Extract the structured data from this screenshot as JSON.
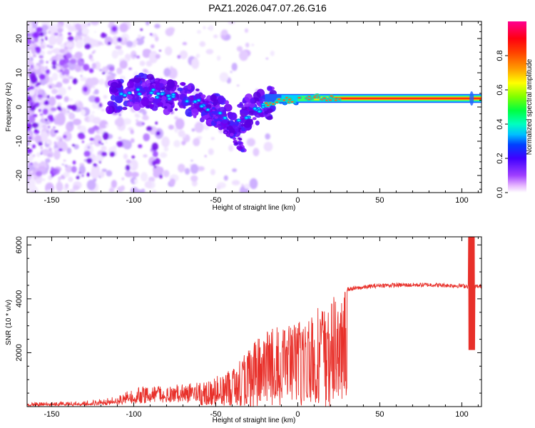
{
  "title": "PAZ1.2026.047.07.26.G16",
  "chart_data": [
    {
      "type": "heatmap",
      "name": "spectrogram",
      "xlabel": "Height of straight line (km)",
      "ylabel": "Frequency (Hz)",
      "xlim": [
        -165,
        112
      ],
      "ylim": [
        -25,
        25
      ],
      "xticks": [
        -150,
        -100,
        -50,
        0,
        50,
        100
      ],
      "yticks": [
        -20,
        -10,
        0,
        10,
        20
      ],
      "colorbar": {
        "label": "Normalized spectral amplitude",
        "range": [
          0.0,
          1.0
        ],
        "ticks": [
          0.0,
          0.2,
          0.4,
          0.6,
          0.8
        ]
      },
      "ridge": [
        {
          "x": -110,
          "y": 3
        },
        {
          "x": -95,
          "y": 5
        },
        {
          "x": -80,
          "y": 3
        },
        {
          "x": -65,
          "y": 2
        },
        {
          "x": -50,
          "y": -1
        },
        {
          "x": -40,
          "y": -4
        },
        {
          "x": -30,
          "y": -2
        },
        {
          "x": -20,
          "y": 0.5
        },
        {
          "x": -10,
          "y": 2
        },
        {
          "x": 0,
          "y": 2
        },
        {
          "x": 10,
          "y": 3
        },
        {
          "x": 20,
          "y": 2.5
        },
        {
          "x": 50,
          "y": 2.5
        },
        {
          "x": 110,
          "y": 2.5
        }
      ]
    },
    {
      "type": "line",
      "name": "snr",
      "xlabel": "Height of straight line (km)",
      "ylabel": "SNR (10 * v/v)",
      "xlim": [
        -165,
        112
      ],
      "ylim": [
        0,
        6300
      ],
      "xticks": [
        -150,
        -100,
        -50,
        0,
        50,
        100
      ],
      "yticks": [
        2000,
        4000,
        6000
      ],
      "color": "#e8302a",
      "envelope": [
        {
          "x": -165,
          "y": 150
        },
        {
          "x": -130,
          "y": 200
        },
        {
          "x": -110,
          "y": 400
        },
        {
          "x": -100,
          "y": 750
        },
        {
          "x": -80,
          "y": 800
        },
        {
          "x": -60,
          "y": 900
        },
        {
          "x": -50,
          "y": 1100
        },
        {
          "x": -40,
          "y": 1500
        },
        {
          "x": -30,
          "y": 2200
        },
        {
          "x": -20,
          "y": 2800
        },
        {
          "x": -10,
          "y": 3000
        },
        {
          "x": 0,
          "y": 3200
        },
        {
          "x": 10,
          "y": 3600
        },
        {
          "x": 20,
          "y": 4000
        },
        {
          "x": 30,
          "y": 4350
        },
        {
          "x": 50,
          "y": 4500
        },
        {
          "x": 80,
          "y": 4520
        },
        {
          "x": 100,
          "y": 4480
        },
        {
          "x": 112,
          "y": 4450
        }
      ]
    }
  ]
}
